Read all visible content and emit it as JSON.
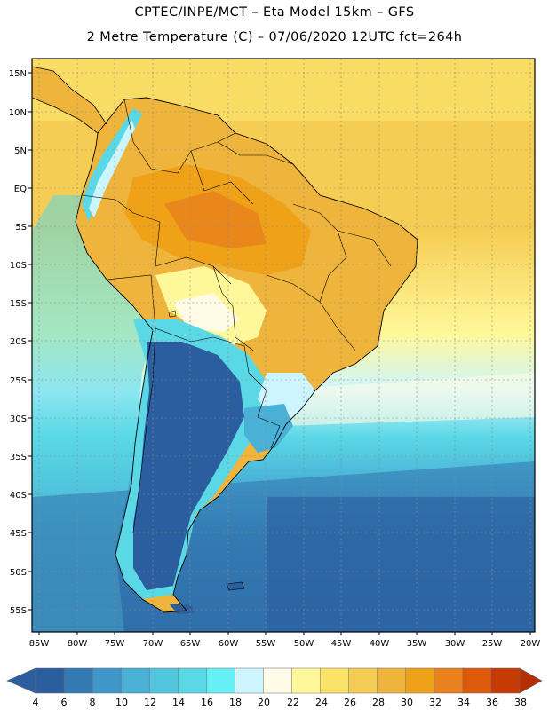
{
  "header": {
    "line1": "CPTEC/INPE/MCT –  Eta Model 15km – GFS",
    "line2": "2 Metre Temperature (C) – 07/06/2020 12UTC fct=264h"
  },
  "map": {
    "lat_ticks": [
      "15N",
      "10N",
      "5N",
      "EQ",
      "5S",
      "10S",
      "15S",
      "20S",
      "25S",
      "30S",
      "35S",
      "40S",
      "45S",
      "50S",
      "55S"
    ],
    "lon_ticks": [
      "85W",
      "80W",
      "75W",
      "70W",
      "65W",
      "60W",
      "55W",
      "50W",
      "45W",
      "40W",
      "35W",
      "30W",
      "25W",
      "20W"
    ]
  },
  "colorbar": {
    "labels": [
      "4",
      "6",
      "8",
      "10",
      "12",
      "14",
      "16",
      "18",
      "20",
      "22",
      "24",
      "26",
      "28",
      "30",
      "32",
      "34",
      "36",
      "38"
    ],
    "colors": [
      "#2b5e9e",
      "#3379b2",
      "#3f96c8",
      "#4ab0d6",
      "#52c6df",
      "#5ad8e6",
      "#66f0f5",
      "#cdf5ff",
      "#fffbe6",
      "#fff89a",
      "#fbe36a",
      "#f6cd54",
      "#efb43c",
      "#efa218",
      "#e9811d",
      "#dd5a0a",
      "#c83a04"
    ]
  }
}
